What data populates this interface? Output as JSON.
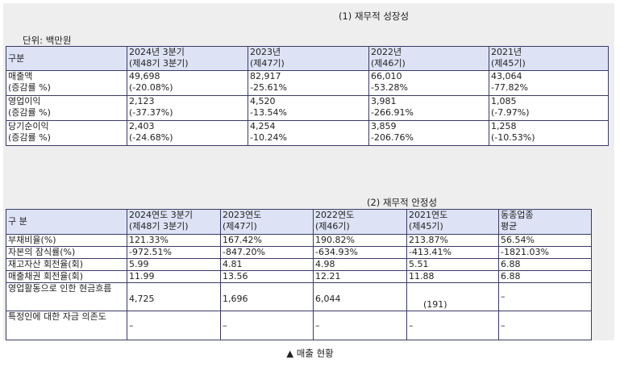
{
  "growth": {
    "title": "(1) 재무적 성장성",
    "unit": "단위: 백만원",
    "headers": [
      {
        "l1": "구분",
        "l2": ""
      },
      {
        "l1": "2024년 3분기",
        "l2": "(제48기 3분기)"
      },
      {
        "l1": "2023년",
        "l2": "(제47기)"
      },
      {
        "l1": "2022년",
        "l2": "(제46기)"
      },
      {
        "l1": "2021년",
        "l2": "(제45기)"
      }
    ],
    "rows": [
      {
        "label1": "매출액",
        "label2": "(증감률 %)",
        "cells": [
          [
            "49,698",
            "(-20.08%)"
          ],
          [
            "82,917",
            "-25.61%"
          ],
          [
            "66,010",
            "-53.28%"
          ],
          [
            "43,064",
            "-77.82%"
          ]
        ]
      },
      {
        "label1": "영업이익",
        "label2": "(증감률 %)",
        "cells": [
          [
            "2,123",
            "(-37.37%)"
          ],
          [
            "4,520",
            "-13.54%"
          ],
          [
            "3,981",
            "-266.91%"
          ],
          [
            "1,085",
            "(-7.97%)"
          ]
        ]
      },
      {
        "label1": "당기순이익",
        "label2": "(증감률 %)",
        "cells": [
          [
            "2,403",
            "(-24.68%)"
          ],
          [
            "4,254",
            "-10.24%"
          ],
          [
            "3,859",
            "-206.76%"
          ],
          [
            "1,258",
            "(-10.53%)"
          ]
        ]
      }
    ]
  },
  "stability": {
    "title": "(2) 재무적 안정성",
    "headers": [
      {
        "l1": "구 분",
        "l2": ""
      },
      {
        "l1": "2024연도 3분기",
        "l2": "(제48기 3분기)"
      },
      {
        "l1": "2023연도",
        "l2": "(제47기)"
      },
      {
        "l1": "2022연도",
        "l2": "(제46기)"
      },
      {
        "l1": "2021연도",
        "l2": "(제45기)"
      },
      {
        "l1": "동종업종",
        "l2": "평균"
      }
    ],
    "rows": [
      {
        "label": "부채비율(%)",
        "cells": [
          "121.33%",
          "167.42%",
          "190.82%",
          "213.87%",
          "56.54%"
        ]
      },
      {
        "label": "자본의 잠식률(%)",
        "cells": [
          "-972.51%",
          "-847.20%",
          "-634.93%",
          "-413.41%",
          "-1821.03%"
        ]
      },
      {
        "label": "재고자산 회전율(회)",
        "cells": [
          "5.99",
          "4.81",
          "4.98",
          "5.51",
          "6.88"
        ]
      },
      {
        "label": "매출채권 회전율(회)",
        "cells": [
          "11.99",
          "13.56",
          "12.21",
          "11.88",
          "6.88"
        ]
      },
      {
        "label": "영업활동으로 인한 현금흐름",
        "cells": [
          "4,725",
          "1,696",
          "6,044",
          "(191)",
          "–"
        ]
      },
      {
        "label": "특정인에 대한 자금 의존도",
        "cells": [
          "–",
          "–",
          "–",
          "–",
          "–"
        ]
      }
    ]
  },
  "caption": "▲ 매출 현황"
}
